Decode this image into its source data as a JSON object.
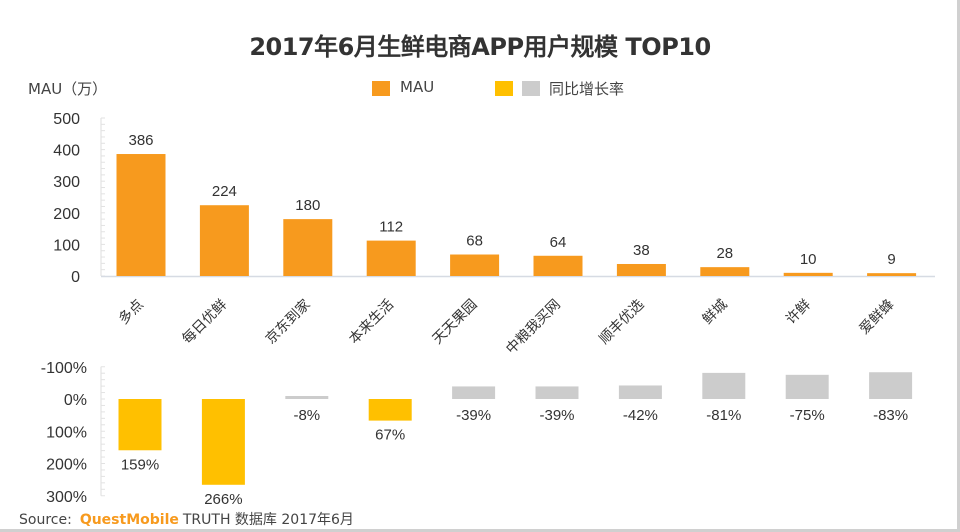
{
  "title": "2017年6月生鲜电商APP用户规模 TOP10",
  "legend": {
    "mau_label": "MAU",
    "growth_label": "同比增长率",
    "colors": {
      "mau": "#F79A1E",
      "growth_positive": "#FFC000",
      "growth_negative": "#CCCCCC"
    }
  },
  "source": {
    "prefix": "Source:",
    "brand": "QuestMobile",
    "suffix": "TRUTH 数据库 2017年6月"
  },
  "chart_data": [
    {
      "type": "bar",
      "title": "2017年6月生鲜电商APP用户规模 TOP10",
      "ylabel": "MAU（万）",
      "xlabel": "",
      "ylim": [
        0,
        500
      ],
      "yticks": [
        0,
        100,
        200,
        300,
        400,
        500
      ],
      "ytick_labels": [
        "0",
        "100",
        "200",
        "300",
        "400",
        "500"
      ],
      "categories": [
        "多点",
        "每日优鲜",
        "京东到家",
        "本来生活",
        "天天果园",
        "中粮我买网",
        "顺丰优选",
        "鲜城",
        "许鲜",
        "爱鲜蜂"
      ],
      "series": [
        {
          "name": "MAU",
          "values": [
            386,
            224,
            180,
            112,
            68,
            64,
            38,
            28,
            10,
            9
          ],
          "color": "#F79A1E"
        }
      ],
      "data_labels": [
        "386",
        "224",
        "180",
        "112",
        "68",
        "64",
        "38",
        "28",
        "10",
        "9"
      ],
      "grid": false,
      "legend_position": "top-center"
    },
    {
      "type": "bar",
      "title": "",
      "ylabel": "",
      "xlabel": "",
      "ylim": [
        -100,
        300
      ],
      "y_inverted": true,
      "yticks": [
        -100,
        0,
        100,
        200,
        300
      ],
      "ytick_labels": [
        "-100%",
        "0%",
        "100%",
        "200%",
        "300%"
      ],
      "categories": [
        "多点",
        "每日优鲜",
        "京东到家",
        "本来生活",
        "天天果园",
        "中粮我买网",
        "顺丰优选",
        "鲜城",
        "许鲜",
        "爱鲜蜂"
      ],
      "series": [
        {
          "name": "同比增长率",
          "values": [
            159,
            266,
            -8,
            67,
            -39,
            -39,
            -42,
            -81,
            -75,
            -83
          ]
        }
      ],
      "data_labels": [
        "159%",
        "266%",
        "-8%",
        "67%",
        "-39%",
        "-39%",
        "-42%",
        "-81%",
        "-75%",
        "-83%"
      ],
      "grid": false
    }
  ]
}
